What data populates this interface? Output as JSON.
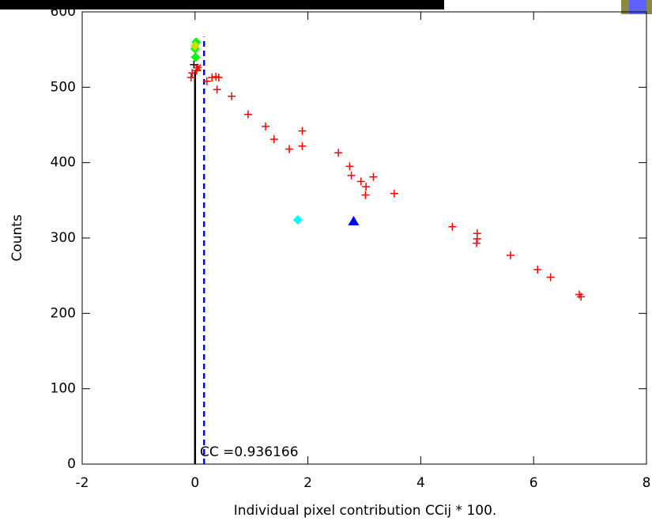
{
  "chart_data": {
    "type": "scatter",
    "xlabel": "Individual pixel contribution CCij * 100.",
    "ylabel": "Counts",
    "annotation": "CC =0.936166",
    "xlim": [
      -2,
      8
    ],
    "ylim": [
      0,
      600
    ],
    "xticks": [
      -2,
      0,
      2,
      4,
      6,
      8
    ],
    "yticks": [
      0,
      100,
      200,
      300,
      400,
      500,
      600
    ],
    "series": [
      {
        "color": "#ff0000",
        "marker": "plus",
        "x": [
          0.21,
          0.3,
          0.37,
          0.42,
          0.39,
          0.65,
          0.94,
          1.25,
          1.4,
          1.67,
          1.9,
          1.9,
          2.54,
          2.74,
          2.77,
          2.94,
          3.03,
          3.02,
          3.16,
          3.53,
          4.56,
          5.0,
          5.0,
          4.99,
          5.59,
          6.07,
          6.3,
          6.81,
          6.84,
          -0.05,
          -0.07,
          0.03
        ],
        "values": [
          508,
          513,
          514,
          513,
          497,
          488,
          464,
          448,
          431,
          418,
          442,
          422,
          413,
          395,
          383,
          375,
          368,
          357,
          381,
          359,
          315,
          306,
          299,
          293,
          277,
          258,
          248,
          225,
          222,
          519,
          513,
          522
        ]
      },
      {
        "color": "#000000",
        "marker": "plus",
        "x": [
          -0.02,
          0.0
        ],
        "values": [
          530,
          540
        ]
      },
      {
        "color": "#ff0000",
        "marker": "asterisk",
        "x": [
          0.05
        ],
        "values": [
          526
        ]
      },
      {
        "color": "#00ff00",
        "marker": "diamond",
        "x": [
          0.02,
          0.0,
          0.01
        ],
        "values": [
          560,
          551,
          540
        ]
      },
      {
        "color": "#c8e000",
        "marker": "diamond",
        "x": [
          0.0
        ],
        "values": [
          555
        ]
      },
      {
        "color": "#00ffff",
        "marker": "diamond",
        "x": [
          1.82
        ],
        "values": [
          324
        ]
      },
      {
        "color": "#0000ff",
        "marker": "triangle",
        "x": [
          2.81
        ],
        "values": [
          322
        ]
      }
    ],
    "reference_lines": [
      {
        "color": "#000000",
        "dash": false,
        "x": [
          0,
          0
        ],
        "y": [
          0,
          521
        ]
      },
      {
        "color": "#0000ff",
        "dash": true,
        "x": [
          0.16,
          0.16
        ],
        "y": [
          0,
          567
        ]
      }
    ]
  }
}
